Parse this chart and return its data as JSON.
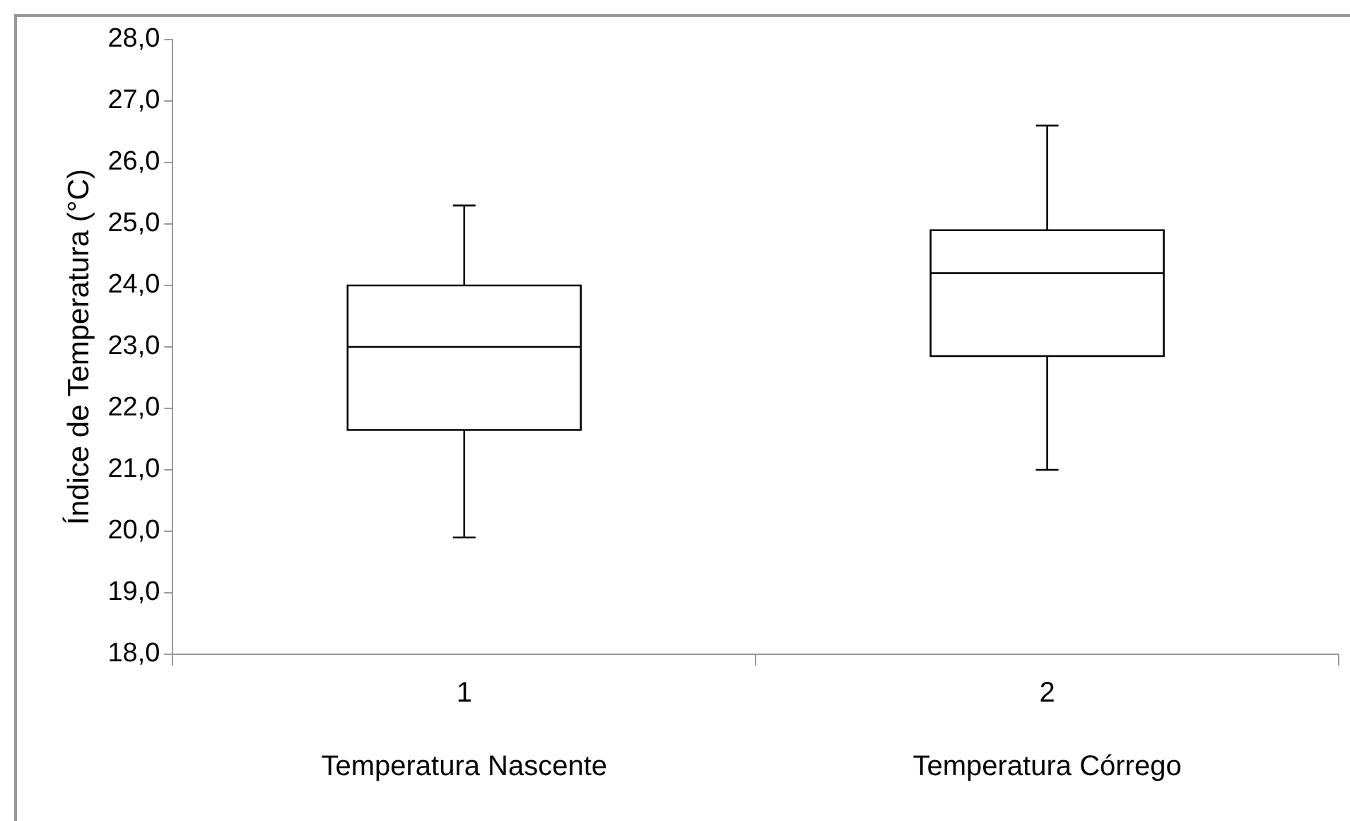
{
  "chart_data": {
    "type": "box",
    "ylabel": "Índice de Temperatura (°C)",
    "categories": [
      "1",
      "2"
    ],
    "boxes": [
      {
        "low": 19.9,
        "q1": 21.65,
        "median": 23.0,
        "q3": 24.0,
        "high": 25.3
      },
      {
        "low": 21.0,
        "q1": 22.85,
        "median": 24.2,
        "q3": 24.9,
        "high": 26.6
      }
    ],
    "color": "#000000",
    "ylim": [
      18,
      28
    ],
    "yticks": [
      {
        "value": 18,
        "label": "18,0"
      },
      {
        "value": 19,
        "label": "19,0"
      },
      {
        "value": 20,
        "label": "20,0"
      },
      {
        "value": 21,
        "label": "21,0"
      },
      {
        "value": 22,
        "label": "22,0"
      },
      {
        "value": 23,
        "label": "23,0"
      },
      {
        "value": 24,
        "label": "24,0"
      },
      {
        "value": 25,
        "label": "25,0"
      },
      {
        "value": 26,
        "label": "26,0"
      },
      {
        "value": 27,
        "label": "27,0"
      },
      {
        "value": 28,
        "label": "28,0"
      }
    ],
    "annotations": [
      "Temperatura Nascente",
      "Temperatura Córrego"
    ],
    "grid": false,
    "legend": false
  }
}
